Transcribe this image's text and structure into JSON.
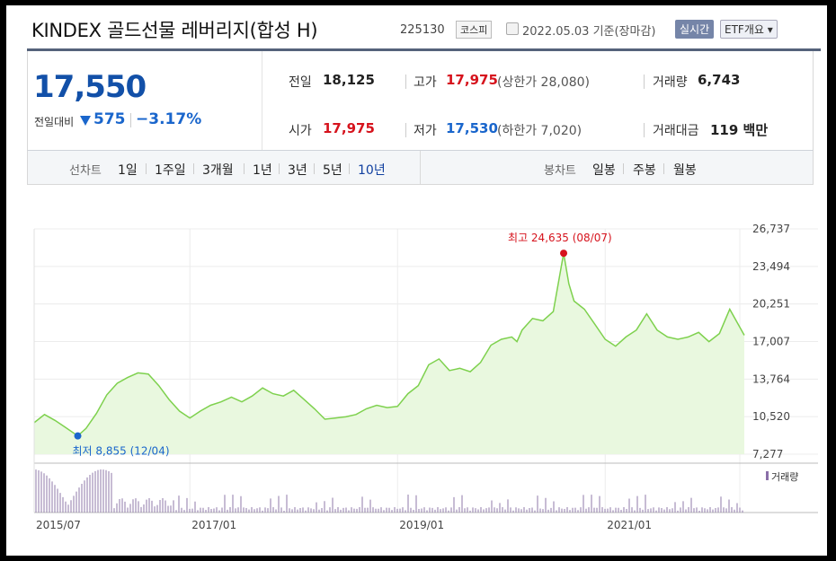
{
  "title": {
    "name": "KINDEX 골드선물 레버리지(합성 H)",
    "code": "225130",
    "market": "코스피",
    "date_text": "2022.05.03  기준(장마감)",
    "realtime_label": "실시간",
    "etf_label": "ETF개요 ▾"
  },
  "quote": {
    "price": "17,550",
    "change_label": "전일대비",
    "change_amount": "575",
    "change_percent": "−3.17%",
    "prev_label": "전일",
    "prev_value": "18,125",
    "high_label": "고가",
    "high_value": "17,975",
    "upper_limit": "(상한가 28,080)",
    "volume_label": "거래량",
    "volume_value": "6,743",
    "open_label": "시가",
    "open_value": "17,975",
    "low_label": "저가",
    "low_value": "17,530",
    "lower_limit": "(하한가 7,020)",
    "amount_label": "거래대금",
    "amount_value": "119 백만"
  },
  "periods": {
    "line_label": "선차트",
    "line_items": [
      "1일",
      "1주일",
      "3개월",
      "1년",
      "3년",
      "5년",
      "10년"
    ],
    "active": "10년",
    "candle_label": "봉차트",
    "candle_items": [
      "일봉",
      "주봉",
      "월봉"
    ]
  },
  "chart_data": {
    "type": "area",
    "color_line": "#7ed14e",
    "color_fill": "#e9f8df",
    "y_ticks": [
      "26,737",
      "23,494",
      "20,251",
      "17,007",
      "13,764",
      "10,520",
      "7,277"
    ],
    "ylim": [
      7277,
      26737
    ],
    "x_ticks": [
      "2015/07",
      "2017/01",
      "2019/01",
      "2021/01"
    ],
    "x_tick_dates": [
      2015.5,
      2017.0,
      2019.0,
      2021.0
    ],
    "xlim": [
      2015.5,
      2022.34
    ],
    "max_label": "최고 24,635 (08/07)",
    "max_point": {
      "x": 2020.6,
      "y": 24635
    },
    "min_label": "최저 8,855 (12/04)",
    "min_point": {
      "x": 2015.92,
      "y": 8855
    },
    "volume_legend": "거래량",
    "series": [
      {
        "x": [
          2015.5,
          2015.6,
          2015.7,
          2015.8,
          2015.92,
          2016.0,
          2016.1,
          2016.2,
          2016.3,
          2016.4,
          2016.5,
          2016.6,
          2016.7,
          2016.8,
          2016.9,
          2017.0,
          2017.1,
          2017.2,
          2017.3,
          2017.4,
          2017.5,
          2017.6,
          2017.7,
          2017.8,
          2017.9,
          2018.0,
          2018.1,
          2018.2,
          2018.3,
          2018.4,
          2018.5,
          2018.6,
          2018.7,
          2018.8,
          2018.9,
          2019.0,
          2019.1,
          2019.2,
          2019.3,
          2019.4,
          2019.5,
          2019.6,
          2019.7,
          2019.8,
          2019.9,
          2020.0,
          2020.1,
          2020.15,
          2020.2,
          2020.3,
          2020.4,
          2020.5,
          2020.6,
          2020.65,
          2020.7,
          2020.8,
          2020.9,
          2021.0,
          2021.1,
          2021.2,
          2021.3,
          2021.4,
          2021.5,
          2021.6,
          2021.7,
          2021.8,
          2021.9,
          2022.0,
          2022.1,
          2022.2,
          2022.34
        ],
        "y": [
          10000,
          10700,
          10200,
          9600,
          8855,
          9500,
          10800,
          12400,
          13400,
          13900,
          14300,
          14200,
          13200,
          12000,
          11000,
          10400,
          11000,
          11500,
          11800,
          12200,
          11800,
          12300,
          13000,
          12500,
          12300,
          12800,
          12000,
          11200,
          10300,
          10400,
          10500,
          10700,
          11200,
          11500,
          11300,
          11400,
          12500,
          13200,
          15000,
          15500,
          14500,
          14700,
          14400,
          15200,
          16700,
          17200,
          17400,
          17000,
          18000,
          19000,
          18800,
          19600,
          24635,
          22000,
          20500,
          19800,
          18500,
          17200,
          16600,
          17400,
          18000,
          19400,
          18000,
          17400,
          17200,
          17400,
          17800,
          17000,
          17700,
          19800,
          17550
        ]
      }
    ]
  }
}
